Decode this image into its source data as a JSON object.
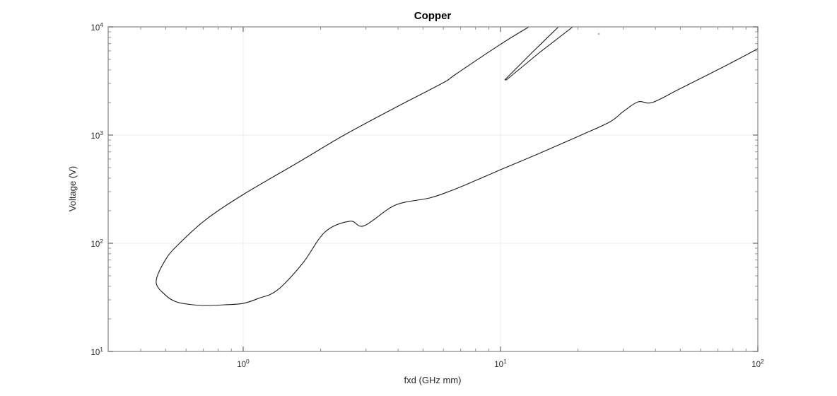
{
  "figure": {
    "background": "#ffffff"
  },
  "chart_data": {
    "type": "line",
    "title": "Copper",
    "xlabel": "fxd (GHz mm)",
    "ylabel": "Voltage (V)",
    "xscale": "log",
    "yscale": "log",
    "xlim": [
      0.2988,
      100
    ],
    "ylim": [
      10,
      10000
    ],
    "grid": "major-only",
    "legend": "none",
    "x_ticks": [
      {
        "base": "10",
        "exp": "0",
        "value": 1
      },
      {
        "base": "10",
        "exp": "1",
        "value": 10
      },
      {
        "base": "10",
        "exp": "2",
        "value": 100
      }
    ],
    "y_ticks": [
      {
        "base": "10",
        "exp": "1",
        "value": 10
      },
      {
        "base": "10",
        "exp": "2",
        "value": 100
      },
      {
        "base": "10",
        "exp": "3",
        "value": 1000
      },
      {
        "base": "10",
        "exp": "4",
        "value": 10000
      }
    ],
    "x_minor_ticks": [
      0.4,
      0.5,
      0.6,
      0.7,
      0.8,
      0.9,
      2,
      3,
      4,
      5,
      6,
      7,
      8,
      9,
      20,
      30,
      40,
      50,
      60,
      70,
      80,
      90
    ],
    "y_minor_ticks": [
      20,
      30,
      40,
      50,
      60,
      70,
      80,
      90,
      200,
      300,
      400,
      500,
      600,
      700,
      800,
      900,
      2000,
      3000,
      4000,
      5000,
      6000,
      7000,
      8000,
      9000
    ],
    "series": [
      {
        "name": "multipactor-boundary",
        "smooth": true,
        "points": [
          [
            12.9,
            10000
          ],
          [
            10.0,
            6900
          ],
          [
            6.7,
            3650
          ],
          [
            6.0,
            3050
          ],
          [
            4.0,
            1850
          ],
          [
            2.47,
            1000
          ],
          [
            1.65,
            565
          ],
          [
            1.0,
            282
          ],
          [
            0.72,
            167
          ],
          [
            0.566,
            100
          ],
          [
            0.5,
            71
          ],
          [
            0.459,
            44
          ],
          [
            0.5,
            33
          ],
          [
            0.55,
            28.7
          ],
          [
            0.62,
            27.2
          ],
          [
            0.7,
            26.6
          ],
          [
            0.85,
            27.0
          ],
          [
            1.0,
            27.8
          ],
          [
            1.15,
            31
          ],
          [
            1.36,
            37
          ],
          [
            1.7,
            65
          ],
          [
            2.08,
            127
          ],
          [
            2.6,
            160
          ],
          [
            2.95,
            145
          ],
          [
            3.9,
            225
          ],
          [
            5.3,
            262
          ],
          [
            6.4,
            305
          ],
          [
            8.0,
            380
          ],
          [
            10,
            478
          ],
          [
            14,
            670
          ],
          [
            20.3,
            985
          ],
          [
            26.7,
            1330
          ],
          [
            30,
            1650
          ],
          [
            34.3,
            2030
          ],
          [
            38.9,
            2000
          ],
          [
            50,
            2690
          ],
          [
            76.7,
            4500
          ],
          [
            100,
            6280
          ]
        ]
      },
      {
        "name": "upper-notch",
        "smooth": false,
        "points": [
          [
            16.8,
            10000
          ],
          [
            13.2,
            5730
          ],
          [
            10.4,
            3240
          ],
          [
            10.55,
            3236
          ],
          [
            14.1,
            5730
          ],
          [
            19.1,
            10000
          ]
        ]
      }
    ],
    "stray_point": {
      "x": 24.1,
      "y": 8610
    },
    "colors": {
      "line": "#1a1a1a",
      "axis": "#909090",
      "major_tick": "#7a7a7a",
      "grid": "#ebebeb",
      "tick_label": "#262626",
      "axis_label": "#262626",
      "title": "#000000",
      "stray": "#b0b0b0"
    }
  }
}
